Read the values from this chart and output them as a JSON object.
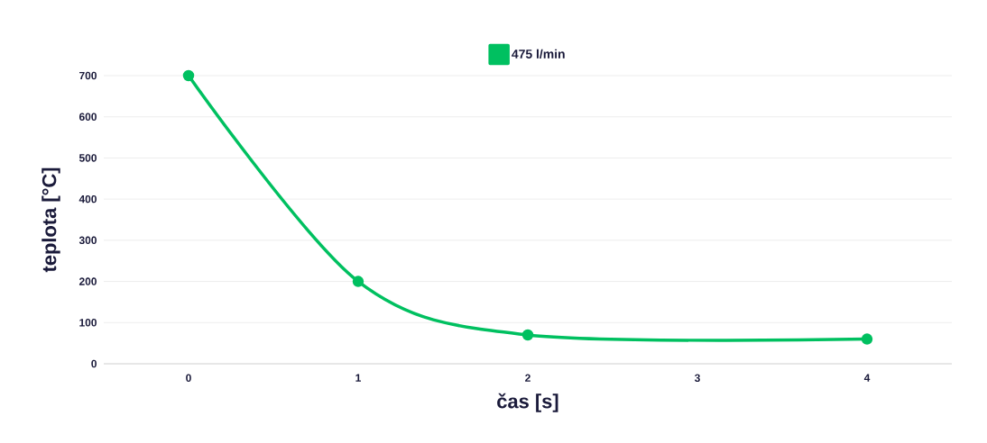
{
  "chart_data": {
    "type": "line",
    "xlabel": "čas [s]",
    "ylabel": "teplota [°C]",
    "series": [
      {
        "name": "475 l/min",
        "color": "#00c060",
        "x": [
          0,
          1,
          2,
          4
        ],
        "values": [
          700,
          200,
          70,
          60
        ]
      }
    ],
    "xlim": [
      -0.5,
      4.5
    ],
    "xticks": [
      0,
      1,
      2,
      3,
      4
    ],
    "ylim": [
      0,
      700
    ],
    "yticks": [
      0,
      100,
      200,
      300,
      400,
      500,
      600,
      700
    ],
    "grid": "y",
    "legend": "top",
    "marker": "circle",
    "line_style": "solid"
  }
}
